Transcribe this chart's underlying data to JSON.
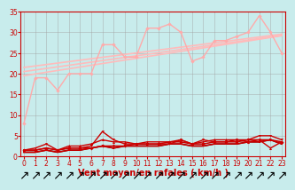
{
  "xlabel": "Vent moyen/en rafales ( km/h )",
  "background_color": "#c8ecec",
  "grid_color": "#a0a0a0",
  "x_values": [
    0,
    1,
    2,
    3,
    4,
    5,
    6,
    7,
    8,
    9,
    10,
    11,
    12,
    13,
    14,
    15,
    16,
    17,
    18,
    19,
    20,
    21,
    22,
    23
  ],
  "series_light_jagged": {
    "data": [
      8,
      19,
      19,
      16,
      20,
      20,
      20,
      27,
      27,
      24,
      24,
      31,
      31,
      32,
      30,
      23,
      24,
      28,
      28,
      29,
      30,
      34,
      30,
      25
    ],
    "color": "#ffaaaa",
    "linewidth": 1.0,
    "marker": "D",
    "markersize": 2.2,
    "zorder": 3
  },
  "series_light_smooth": [
    {
      "slope": 0.42,
      "intercept": 19.5,
      "color": "#ffbbbb",
      "linewidth": 1.2,
      "zorder": 2
    },
    {
      "slope": 0.38,
      "intercept": 20.5,
      "color": "#ffbbbb",
      "linewidth": 1.2,
      "zorder": 2
    },
    {
      "slope": 0.35,
      "intercept": 21.5,
      "color": "#ffbbbb",
      "linewidth": 1.2,
      "zorder": 2
    }
  ],
  "series_dark": [
    {
      "data": [
        1.5,
        1.5,
        2,
        1.5,
        2,
        2,
        2,
        2.5,
        2.5,
        2.5,
        3,
        3,
        3,
        3.5,
        3.5,
        3,
        3,
        3.5,
        3.5,
        3.5,
        4,
        4,
        4,
        3.5
      ],
      "color": "#cc0000",
      "linewidth": 1.1,
      "marker": "D",
      "markersize": 2.0,
      "zorder": 5
    },
    {
      "data": [
        1.5,
        1.5,
        2,
        1.5,
        2.5,
        2.5,
        3,
        4,
        3.5,
        3.5,
        3,
        3.5,
        3.5,
        3.5,
        4,
        3,
        3.5,
        4,
        4,
        4,
        3.5,
        4,
        2,
        3.5
      ],
      "color": "#cc0000",
      "linewidth": 1.0,
      "marker": "^",
      "markersize": 2.2,
      "zorder": 5
    },
    {
      "data": [
        1,
        1,
        1.5,
        1,
        1.5,
        1.5,
        2,
        2.5,
        2,
        2.5,
        2.5,
        2.5,
        2.5,
        3,
        3,
        2.5,
        2.5,
        3,
        3,
        3,
        3.5,
        3.5,
        4,
        3
      ],
      "color": "#cc0000",
      "linewidth": 1.0,
      "marker": "s",
      "markersize": 1.8,
      "zorder": 5
    },
    {
      "data": [
        1,
        1,
        1.5,
        1,
        1.5,
        1.5,
        2,
        2.5,
        2,
        2.5,
        2.5,
        2.5,
        2.5,
        3,
        3,
        2.5,
        2.5,
        3,
        3,
        3,
        3.5,
        3.5,
        4,
        3
      ],
      "color": "#880000",
      "linewidth": 1.2,
      "marker": null,
      "markersize": 0,
      "zorder": 4
    },
    {
      "data": [
        1.5,
        2,
        3,
        1.5,
        2,
        2,
        2.5,
        6,
        4,
        3,
        3,
        3,
        3,
        3,
        4,
        3,
        4,
        3.5,
        3.5,
        4,
        4,
        5,
        5,
        4
      ],
      "color": "#cc0000",
      "linewidth": 1.0,
      "marker": "v",
      "markersize": 2.0,
      "zorder": 5
    }
  ],
  "xlim": [
    -0.3,
    23.3
  ],
  "ylim": [
    0,
    35
  ],
  "yticks": [
    0,
    5,
    10,
    15,
    20,
    25,
    30,
    35
  ],
  "xticks": [
    0,
    1,
    2,
    3,
    4,
    5,
    6,
    7,
    8,
    9,
    10,
    11,
    12,
    13,
    14,
    15,
    16,
    17,
    18,
    19,
    20,
    21,
    22,
    23
  ],
  "tick_color": "#cc0000",
  "label_color": "#cc0000",
  "axis_color": "#cc0000",
  "axis_fontsize": 5.5,
  "xlabel_fontsize": 7,
  "arrow_symbol": "↗"
}
